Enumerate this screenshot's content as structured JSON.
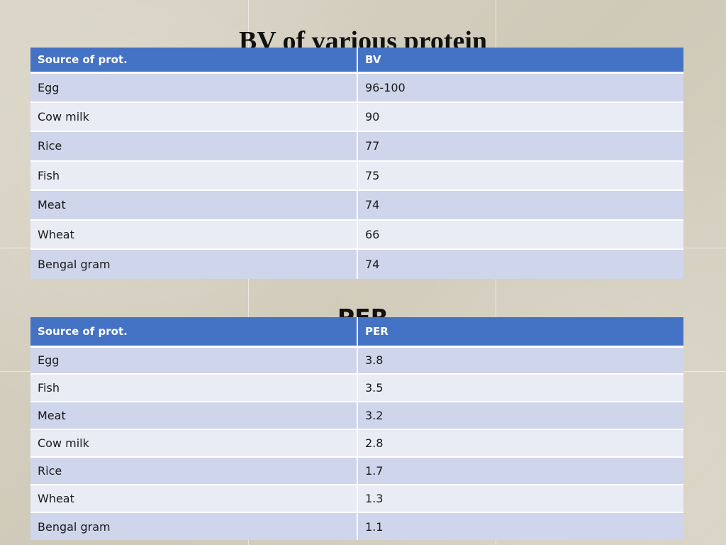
{
  "slide": {
    "title": "BV of various protein",
    "section_title": "PER"
  },
  "bv_table": {
    "headers": [
      "Source of prot.",
      "BV"
    ],
    "rows": [
      [
        "Egg",
        "96-100"
      ],
      [
        "Cow milk",
        "90"
      ],
      [
        "Rice",
        "77"
      ],
      [
        "Fish",
        "75"
      ],
      [
        "Meat",
        "74"
      ],
      [
        "Wheat",
        "66"
      ],
      [
        "Bengal gram",
        "74"
      ]
    ]
  },
  "per_table": {
    "headers": [
      "Source of prot.",
      "PER"
    ],
    "rows": [
      [
        "Egg",
        "3.8"
      ],
      [
        "Fish",
        "3.5"
      ],
      [
        "Meat",
        "3.2"
      ],
      [
        "Cow milk",
        "2.8"
      ],
      [
        "Rice",
        "1.7"
      ],
      [
        "Wheat",
        "1.3"
      ],
      [
        "Bengal gram",
        "1.1"
      ]
    ]
  },
  "colors": {
    "header_fill": "#4472c4",
    "row_dark": "#cfd5ea",
    "row_light": "#e9ebf5",
    "background": "#d6d1c2"
  }
}
